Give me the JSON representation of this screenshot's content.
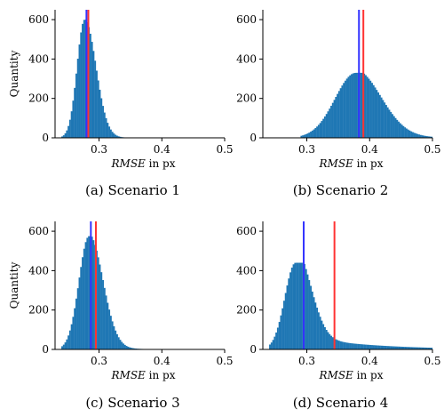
{
  "figure": {
    "color_hist": "#1f77b4",
    "color_blue": "#3333ff",
    "color_red": "#ff3333"
  },
  "chart_data": [
    {
      "type": "bar",
      "caption": "(a) Scenario 1",
      "ylabel": "Quantity",
      "xlabel_italic": "RMSE",
      "xlabel_unit": " in px",
      "xlim": [
        0.23,
        0.5
      ],
      "ylim": [
        0,
        650
      ],
      "xticks": [
        0.3,
        0.4,
        0.5
      ],
      "yticks": [
        0,
        200,
        400,
        600
      ],
      "dist": {
        "peak": 600,
        "mode": 0.277,
        "sigmaLeft": 0.012,
        "sigmaRight": 0.018,
        "tailAmp": 0.005,
        "tailScale": 0.06,
        "start": 0.24
      },
      "blue_line": 0.28,
      "red_line": 0.283
    },
    {
      "type": "bar",
      "caption": "(b) Scenario 2",
      "ylabel": "",
      "xlabel_italic": "RMSE",
      "xlabel_unit": " in px",
      "xlim": [
        0.23,
        0.5
      ],
      "ylim": [
        0,
        650
      ],
      "xticks": [
        0.3,
        0.4,
        0.5
      ],
      "yticks": [
        0,
        200,
        400,
        600
      ],
      "dist": {
        "peak": 330,
        "mode": 0.378,
        "sigmaLeft": 0.033,
        "sigmaRight": 0.04,
        "tailAmp": 0.05,
        "tailScale": 0.06,
        "start": 0.29
      },
      "blue_line": 0.383,
      "red_line": 0.39
    },
    {
      "type": "bar",
      "caption": "(c) Scenario 3",
      "ylabel": "Quantity",
      "xlabel_italic": "RMSE",
      "xlabel_unit": " in px",
      "xlim": [
        0.23,
        0.5
      ],
      "ylim": [
        0,
        650
      ],
      "xticks": [
        0.3,
        0.4,
        0.5
      ],
      "yticks": [
        0,
        200,
        400,
        600
      ],
      "dist": {
        "peak": 575,
        "mode": 0.284,
        "sigmaLeft": 0.016,
        "sigmaRight": 0.022,
        "tailAmp": 0.02,
        "tailScale": 0.05,
        "start": 0.24
      },
      "blue_line": 0.287,
      "red_line": 0.295
    },
    {
      "type": "bar",
      "caption": "(d) Scenario 4",
      "ylabel": "",
      "xlabel_italic": "RMSE",
      "xlabel_unit": " in px",
      "xlim": [
        0.23,
        0.5
      ],
      "ylim": [
        0,
        650
      ],
      "xticks": [
        0.3,
        0.4,
        0.5
      ],
      "yticks": [
        0,
        200,
        400,
        600
      ],
      "dist": {
        "peak": 440,
        "mode": 0.282,
        "sigmaLeft": 0.017,
        "sigmaRight": 0.024,
        "tailAmp": 0.17,
        "tailScale": 0.1,
        "start": 0.24
      },
      "blue_line": 0.295,
      "red_line": 0.344
    }
  ]
}
